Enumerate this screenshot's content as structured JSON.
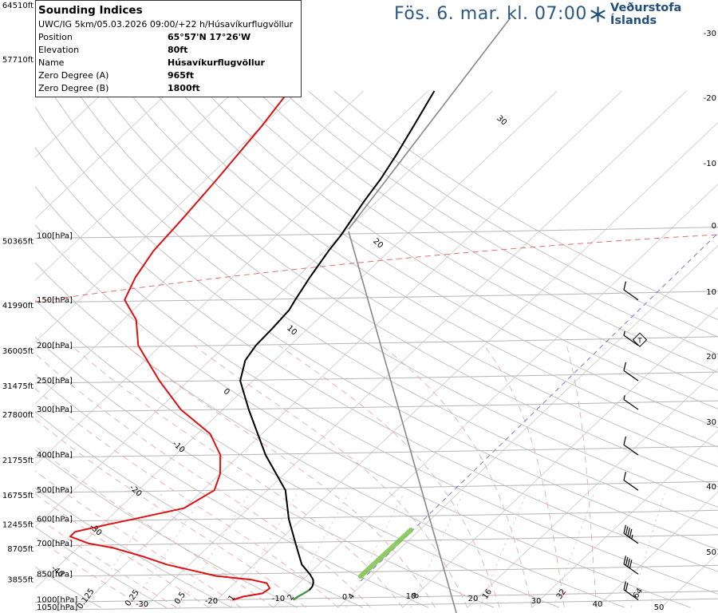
{
  "header": {
    "valid_time": "Fös. 6. mar. kl. 07:00",
    "brand": "Veðurstofa Íslands",
    "brand_icon": "snowflake-icon"
  },
  "info": {
    "title": "Sounding Indices",
    "model_line": "UWC/IG 5km/05.03.2026 09:00/+22 h/Húsavíkurflugvöllur",
    "rows": [
      {
        "label": "Position",
        "value": "65°57'N 17°26'W"
      },
      {
        "label": "Elevation",
        "value": "80ft"
      },
      {
        "label": "Name",
        "value": "Húsavíkurflugvöllur"
      },
      {
        "label": "Zero Degree (A)",
        "value": "965ft"
      },
      {
        "label": "Zero Degree (B)",
        "value": "1800ft"
      }
    ]
  },
  "chart_data": {
    "type": "line",
    "title": "",
    "xlabel": "",
    "ylabel": "",
    "y_scale": "log-pressure",
    "pressure_range_hpa": [
      1050,
      40
    ],
    "pressure_ticks": [
      {
        "p": 100,
        "label": "100[hPa]",
        "alt": "50365ft"
      },
      {
        "p": 150,
        "label": "150[hPa]",
        "alt": "41990ft"
      },
      {
        "p": 200,
        "label": "200[hPa]",
        "alt": "36005ft"
      },
      {
        "p": 250,
        "label": "250[hPa]",
        "alt": "31475ft"
      },
      {
        "p": 300,
        "label": "300[hPa]",
        "alt": "27800ft"
      },
      {
        "p": 400,
        "label": "400[hPa]",
        "alt": "21755ft"
      },
      {
        "p": 500,
        "label": "500[hPa]",
        "alt": "16755ft"
      },
      {
        "p": 600,
        "label": "600[hPa]",
        "alt": "12455ft"
      },
      {
        "p": 700,
        "label": "700[hPa]",
        "alt": "8705ft"
      },
      {
        "p": 850,
        "label": "850[hPa]",
        "alt": "3855ft"
      },
      {
        "p": 1000,
        "label": "1000[hPa]",
        "alt": ""
      },
      {
        "p": 1050,
        "label": "1050[hPa]",
        "alt": ""
      }
    ],
    "top_altitude_labels": [
      "64510ft",
      "57710ft"
    ],
    "isotherm_labels": [
      "-40",
      "-30",
      "-20",
      "-10",
      "0",
      "10",
      "20",
      "30"
    ],
    "mixing_ratio_labels": [
      "0.125",
      "0.25",
      "0.5",
      "1",
      "2",
      "4",
      "8",
      "16",
      "32",
      "64"
    ],
    "moist_adiabat_labels": [
      "-30",
      "-20",
      "-10",
      "0",
      "10",
      "20",
      "30"
    ],
    "right_axis_labels": [
      "-30",
      "-20",
      "-10",
      "0",
      "10",
      "20",
      "30",
      "40",
      "50"
    ],
    "series": [
      {
        "name": "",
        "color": "#000000",
        "role": "temperature",
        "points": [
          [
            1000,
            -8.2
          ],
          [
            980,
            -8.0
          ],
          [
            960,
            -7.6
          ],
          [
            940,
            -7.3
          ],
          [
            920,
            -7.4
          ],
          [
            900,
            -7.8
          ],
          [
            880,
            -8.4
          ],
          [
            850,
            -9.8
          ],
          [
            800,
            -12.6
          ],
          [
            700,
            -17.0
          ],
          [
            600,
            -22.0
          ],
          [
            500,
            -27.2
          ],
          [
            400,
            -36.0
          ],
          [
            300,
            -46.0
          ],
          [
            250,
            -52.0
          ],
          [
            220,
            -54.5
          ],
          [
            200,
            -55.3
          ],
          [
            180,
            -55.5
          ],
          [
            160,
            -55.9
          ],
          [
            150,
            -56.6
          ],
          [
            130,
            -58.0
          ],
          [
            110,
            -59.4
          ],
          [
            100,
            -60.0
          ],
          [
            80,
            -62.0
          ],
          [
            70,
            -63.0
          ],
          [
            60,
            -64.5
          ],
          [
            50,
            -66.5
          ],
          [
            40,
            -69.0
          ]
        ]
      },
      {
        "name": "",
        "color": "#dd1111",
        "role": "dewpoint",
        "points": [
          [
            1000,
            -17.5
          ],
          [
            980,
            -16.5
          ],
          [
            960,
            -14.0
          ],
          [
            930,
            -13.7
          ],
          [
            900,
            -15.0
          ],
          [
            880,
            -18.0
          ],
          [
            860,
            -24.0
          ],
          [
            800,
            -33.5
          ],
          [
            760,
            -38.5
          ],
          [
            720,
            -44.5
          ],
          [
            700,
            -49.0
          ],
          [
            670,
            -53.0
          ],
          [
            650,
            -53.0
          ],
          [
            620,
            -49.0
          ],
          [
            600,
            -46.0
          ],
          [
            560,
            -40.0
          ],
          [
            500,
            -38.2
          ],
          [
            450,
            -40.0
          ],
          [
            400,
            -43.0
          ],
          [
            350,
            -48.0
          ],
          [
            300,
            -56.5
          ],
          [
            250,
            -64.5
          ],
          [
            200,
            -73.5
          ],
          [
            170,
            -78.0
          ],
          [
            150,
            -83.0
          ],
          [
            130,
            -85.0
          ],
          [
            110,
            -86.5
          ],
          [
            90,
            -87.2
          ],
          [
            70,
            -88.3
          ],
          [
            50,
            -90.0
          ],
          [
            40,
            -91.5
          ]
        ]
      }
    ],
    "wind_barbs": [
      {
        "p": 1000,
        "speed_kt": 20
      },
      {
        "p": 850,
        "speed_kt": 40
      },
      {
        "p": 700,
        "speed_kt": 45
      },
      {
        "p": 500,
        "speed_kt": 10
      },
      {
        "p": 400,
        "speed_kt": 10
      },
      {
        "p": 300,
        "speed_kt": 5
      },
      {
        "p": 250,
        "speed_kt": 10
      },
      {
        "p": 200,
        "speed_kt": 5
      },
      {
        "p": 150,
        "speed_kt": 10
      }
    ],
    "tropopause_marker": {
      "p": 193,
      "label": "T"
    },
    "colors": {
      "temperature": "#000000",
      "dewpoint": "#dd1111",
      "parcel": "#888888",
      "isobar": "#b5b5b5",
      "isotherm": "#c9c9c9",
      "mixing_ratio": "#d9a3a3",
      "moist_adiabat": "#e5aeae",
      "zero_isotherm": "#e07070",
      "low_level_fill": "#7cc14a"
    }
  }
}
